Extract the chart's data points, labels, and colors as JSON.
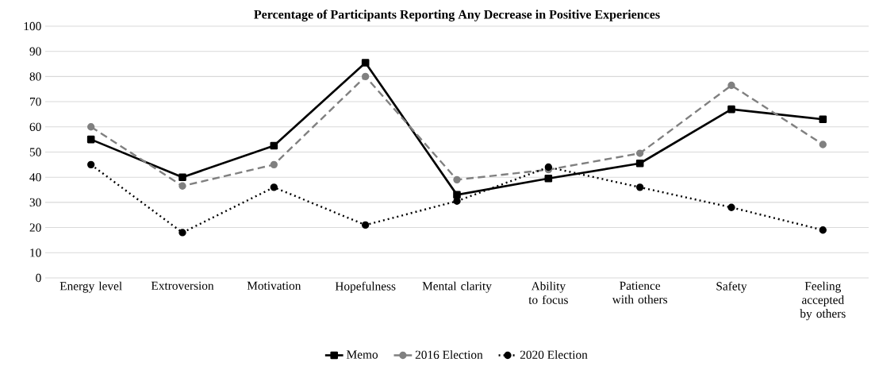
{
  "chart_data": {
    "type": "line",
    "title": "Percentage of Participants Reporting Any Decrease in Positive Experiences",
    "categories": [
      "Energy level",
      "Extroversion",
      "Motivation",
      "Hopefulness",
      "Mental clarity",
      "Ability to focus",
      "Patience with others",
      "Safety",
      "Feeling accepted by others"
    ],
    "series": [
      {
        "name": "Memo",
        "color": "#000000",
        "marker": "square",
        "line_style": "solid",
        "values": [
          55,
          40,
          52.5,
          85.5,
          33,
          39.5,
          45.5,
          67,
          63
        ]
      },
      {
        "name": "2016 Election",
        "color": "#808080",
        "marker": "circle",
        "line_style": "dashed",
        "values": [
          60,
          36.5,
          45,
          80,
          39,
          43,
          49.5,
          76.5,
          53
        ]
      },
      {
        "name": "2020 Election",
        "color": "#000000",
        "marker": "circle",
        "line_style": "dotted",
        "values": [
          45,
          18,
          36,
          21,
          30.5,
          44,
          36,
          28,
          19
        ]
      }
    ],
    "ylim": [
      0,
      100
    ],
    "yticks": [
      0,
      10,
      20,
      30,
      40,
      50,
      60,
      70,
      80,
      90,
      100
    ],
    "grid": "y",
    "legend": "bottom"
  }
}
